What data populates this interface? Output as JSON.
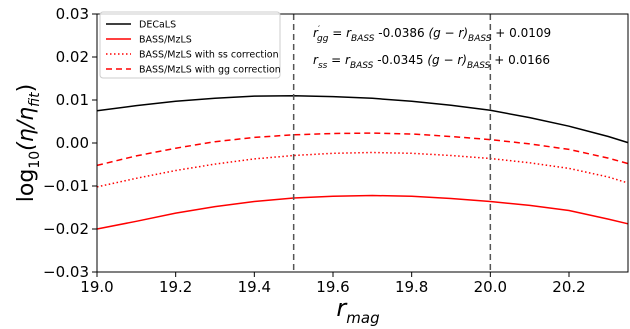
{
  "chart_data": {
    "type": "line",
    "xlabel": "r",
    "xlabel_sub": "mag",
    "ylabel_prefix": "log",
    "ylabel_sub10": "10",
    "ylabel_rest": "(η/η",
    "ylabel_subfit": "fit",
    "ylabel_close": ")",
    "xlim": [
      19.0,
      20.35
    ],
    "ylim": [
      -0.03,
      0.03
    ],
    "xticks": [
      "19.0",
      "19.2",
      "19.4",
      "19.6",
      "19.8",
      "20.0",
      "20.2"
    ],
    "xtick_values": [
      19.0,
      19.2,
      19.4,
      19.6,
      19.8,
      20.0,
      20.2
    ],
    "yticks": [
      "0.03",
      "0.02",
      "0.01",
      "0.00",
      "−0.01",
      "−0.02",
      "−0.03"
    ],
    "ytick_values": [
      0.03,
      0.02,
      0.01,
      0.0,
      -0.01,
      -0.02,
      -0.03
    ],
    "vlines": [
      19.5,
      20.0
    ],
    "grid": false,
    "legend_position": "top-left",
    "x": [
      19.0,
      19.1,
      19.2,
      19.3,
      19.4,
      19.5,
      19.6,
      19.7,
      19.8,
      19.9,
      20.0,
      20.1,
      20.2,
      20.3,
      20.35
    ],
    "series": [
      {
        "name": "DECaLS",
        "color": "#000000",
        "style": "solid",
        "values": [
          0.0075,
          0.0087,
          0.0097,
          0.0104,
          0.0109,
          0.011,
          0.0108,
          0.0104,
          0.0097,
          0.0088,
          0.0076,
          0.0059,
          0.0039,
          0.0015,
          0.0001
        ]
      },
      {
        "name": "BASS/MzLS",
        "color": "#ff0000",
        "style": "solid",
        "values": [
          -0.02,
          -0.0182,
          -0.0163,
          -0.0148,
          -0.0136,
          -0.0128,
          -0.0124,
          -0.0122,
          -0.0124,
          -0.0129,
          -0.0136,
          -0.0145,
          -0.0157,
          -0.0177,
          -0.0188
        ]
      },
      {
        "name": "BASS/MzLS with ss correction",
        "color": "#ff0000",
        "style": "dotted",
        "values": [
          -0.0102,
          -0.0082,
          -0.0064,
          -0.0049,
          -0.0037,
          -0.0029,
          -0.0024,
          -0.0022,
          -0.0024,
          -0.0029,
          -0.0036,
          -0.0046,
          -0.0059,
          -0.0079,
          -0.0093
        ]
      },
      {
        "name": "BASS/MzLS with gg correction",
        "color": "#ff0000",
        "style": "dashed",
        "values": [
          -0.0052,
          -0.003,
          -0.0012,
          0.0003,
          0.0013,
          0.0019,
          0.0022,
          0.0023,
          0.0021,
          0.0015,
          0.0008,
          -0.0002,
          -0.0015,
          -0.0035,
          -0.0048
        ]
      }
    ],
    "annotations": [
      {
        "lhs": "r",
        "lhs_prime": "′",
        "lhs_sub": "gg",
        "eq": " = ",
        "rbass": "r",
        "rbass_sub": "BASS",
        "coef": "  -0.0386 ",
        "color_term": "(g − r)",
        "ct_sub": "BASS",
        "offset": " + 0.0109"
      },
      {
        "lhs": "r",
        "lhs_prime": "",
        "lhs_sub": "ss",
        "eq": " = ",
        "rbass": "r",
        "rbass_sub": "BASS",
        "coef": "  -0.0345 ",
        "color_term": "(g − r)",
        "ct_sub": "BASS",
        "offset": " + 0.0166"
      }
    ]
  }
}
